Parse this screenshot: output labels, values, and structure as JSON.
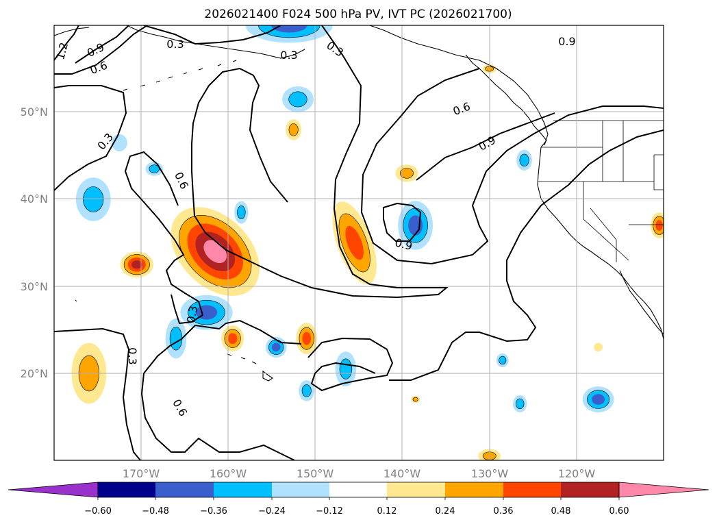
{
  "chart_data": {
    "type": "map-contour",
    "title": "2026021400 F024 500 hPa PV, IVT PC (2026021700)",
    "lon_range": [
      -180,
      -110
    ],
    "lat_range": [
      10,
      60
    ],
    "lon_ticks": [
      {
        "lon": -170,
        "label": "170°W"
      },
      {
        "lon": -160,
        "label": "160°W"
      },
      {
        "lon": -150,
        "label": "150°W"
      },
      {
        "lon": -140,
        "label": "140°W"
      },
      {
        "lon": -130,
        "label": "130°W"
      },
      {
        "lon": -120,
        "label": "120°W"
      }
    ],
    "lat_ticks": [
      {
        "lat": 20,
        "label": "20°N"
      },
      {
        "lat": 30,
        "label": "30°N"
      },
      {
        "lat": 40,
        "label": "40°N"
      },
      {
        "lat": 50,
        "label": "50°N"
      }
    ],
    "colorbar": {
      "levels": [
        -0.6,
        -0.48,
        -0.36,
        -0.24,
        -0.12,
        0.12,
        0.24,
        0.36,
        0.48,
        0.6
      ],
      "labels": [
        "−0.60",
        "−0.48",
        "−0.36",
        "−0.24",
        "−0.12",
        "0.12",
        "0.24",
        "0.36",
        "0.48",
        "0.60"
      ],
      "colors": [
        "#9932cc",
        "#00008b",
        "#3a5fcd",
        "#00bfff",
        "#b0e2ff",
        "#ffffff",
        "#ffe88f",
        "#ffa500",
        "#ff4500",
        "#b22222",
        "#ff88aa"
      ],
      "extend": "both"
    },
    "contour_labels": [
      "0.3",
      "0.6",
      "0.9",
      "1.2"
    ],
    "anomaly_blobs": [
      {
        "lon": -161.5,
        "lat": 34,
        "rlon": 6,
        "rlat": 4,
        "rot": 45,
        "value": 0.65
      },
      {
        "lon": -170.5,
        "lat": 32.5,
        "rlon": 1.9,
        "rlat": 1.5,
        "rot": 0,
        "value": 0.5
      },
      {
        "lon": -159.5,
        "lat": 24,
        "rlon": 1.3,
        "rlat": 1.5,
        "rot": 0,
        "value": 0.4
      },
      {
        "lon": -151,
        "lat": 24,
        "rlon": 1.2,
        "rlat": 1.8,
        "rot": 0,
        "value": 0.45
      },
      {
        "lon": -145.5,
        "lat": 35,
        "rlon": 2,
        "rlat": 5,
        "rot": -20,
        "value": 0.4
      },
      {
        "lon": -139.5,
        "lat": 43,
        "rlon": 1.3,
        "rlat": 1,
        "rot": 0,
        "value": 0.3
      },
      {
        "lon": -152.5,
        "lat": 48,
        "rlon": 0.9,
        "rlat": 1.2,
        "rot": 0,
        "value": 0.3
      },
      {
        "lon": -176,
        "lat": 20,
        "rlon": 2,
        "rlat": 3.5,
        "rot": 0,
        "value": 0.3
      },
      {
        "lon": -130,
        "lat": 10.5,
        "rlon": 1.3,
        "rlat": 0.8,
        "rot": 0,
        "value": 0.3
      },
      {
        "lon": -110.5,
        "lat": 37,
        "rlon": 1,
        "rlat": 1.5,
        "rot": 0,
        "value": 0.4
      },
      {
        "lon": -162.5,
        "lat": 27,
        "rlon": 3,
        "rlat": 2,
        "rot": 0,
        "value": -0.42
      },
      {
        "lon": -166,
        "lat": 24,
        "rlon": 1.2,
        "rlat": 2.3,
        "rot": 0,
        "value": -0.3
      },
      {
        "lon": -138.5,
        "lat": 37,
        "rlon": 2,
        "rlat": 2.8,
        "rot": 0,
        "value": -0.42
      },
      {
        "lon": -154.5,
        "lat": 23,
        "rlon": 1.2,
        "rlat": 1.2,
        "rot": 0,
        "value": -0.42
      },
      {
        "lon": -175.5,
        "lat": 40,
        "rlon": 2,
        "rlat": 2.5,
        "rot": 0,
        "value": -0.3
      },
      {
        "lon": -152,
        "lat": 51.5,
        "rlon": 1.8,
        "rlat": 1.5,
        "rot": 0,
        "value": -0.3
      },
      {
        "lon": -146.5,
        "lat": 20.5,
        "rlon": 1.2,
        "rlat": 2,
        "rot": 0,
        "value": -0.3
      },
      {
        "lon": -151,
        "lat": 18,
        "rlon": 0.9,
        "rlat": 1.2,
        "rot": 0,
        "value": -0.3
      },
      {
        "lon": -117.5,
        "lat": 17,
        "rlon": 1.8,
        "rlat": 1.5,
        "rot": 0,
        "value": -0.45
      },
      {
        "lon": -153,
        "lat": 60,
        "rlon": 5,
        "rlat": 2,
        "rot": 0,
        "value": -0.45
      },
      {
        "lon": -126,
        "lat": 44.5,
        "rlon": 0.9,
        "rlat": 1.2,
        "rot": 0,
        "value": -0.3
      },
      {
        "lon": -168.5,
        "lat": 43.5,
        "rlon": 1,
        "rlat": 0.8,
        "rot": 0,
        "value": -0.25
      },
      {
        "lon": -158.5,
        "lat": 38.5,
        "rlon": 0.8,
        "rlat": 1.3,
        "rot": 0,
        "value": -0.25
      },
      {
        "lon": -128.5,
        "lat": 21.5,
        "rlon": 0.7,
        "rlat": 0.8,
        "rot": 0,
        "value": -0.25
      },
      {
        "lon": -126.5,
        "lat": 16.5,
        "rlon": 0.8,
        "rlat": 1,
        "rot": 0,
        "value": -0.3
      },
      {
        "lon": -117.5,
        "lat": 23,
        "rlon": 0.5,
        "rlat": 0.5,
        "rot": 0,
        "value": 0.2
      },
      {
        "lon": -138.5,
        "lat": 17,
        "rlon": 0.5,
        "rlat": 0.4,
        "rot": 0,
        "value": 0.3
      },
      {
        "lon": -130,
        "lat": 55,
        "rlon": 0.8,
        "rlat": 0.5,
        "rot": 0,
        "value": 0.3
      },
      {
        "lon": -172.5,
        "lat": 46.5,
        "rlon": 0.9,
        "rlat": 1,
        "rot": 0,
        "value": -0.2
      }
    ]
  }
}
